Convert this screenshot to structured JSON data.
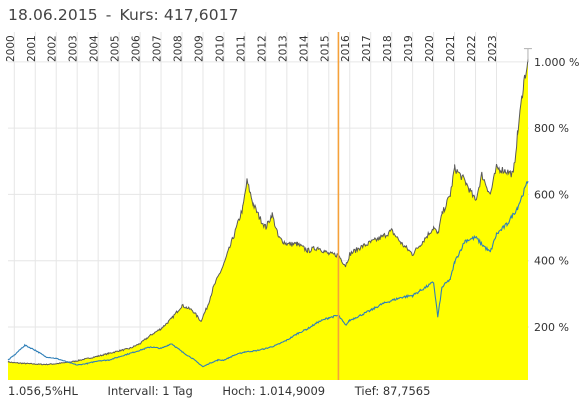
{
  "header": {
    "date": "18.06.2015",
    "separator": "-",
    "price_label": "Kurs: 417,6017"
  },
  "footer": {
    "performance": "1.056,5%HL",
    "interval": "Intervall: 1 Tag",
    "high": "Hoch: 1.014,9009",
    "low": "Tief: 87,7565"
  },
  "colors": {
    "area_fill": "#ffff00",
    "price_line": "#5a5a5a",
    "benchmark_line": "#2f7fb8",
    "crosshair": "#f5a13a",
    "grid": "#e6e6e6",
    "high_marker": "#b0b0b0"
  },
  "chart_data": {
    "type": "area",
    "x_tick_labels": [
      "2000",
      "2001",
      "2002",
      "2003",
      "2004",
      "2005",
      "2006",
      "2007",
      "2008",
      "2009",
      "2010",
      "2011",
      "2012",
      "2013",
      "2014",
      "2015",
      "2016",
      "2017",
      "2018",
      "2019",
      "2020",
      "2021",
      "2022",
      "2023"
    ],
    "y_tick_labels": [
      "200 %",
      "400 %",
      "600 %",
      "800 %",
      "1.000 %"
    ],
    "y_ticks": [
      200,
      400,
      600,
      800,
      1000
    ],
    "ylim": [
      40,
      1060
    ],
    "xlim": [
      1999.7,
      2024.55
    ],
    "marker_x": 2015.46,
    "series": [
      {
        "role": "price",
        "style": "area",
        "x": [
          1999.7,
          2000.0,
          2000.5,
          2001.0,
          2001.5,
          2002.0,
          2002.5,
          2003.0,
          2003.5,
          2004.0,
          2004.5,
          2005.0,
          2005.5,
          2006.0,
          2006.5,
          2007.0,
          2007.5,
          2008.0,
          2008.5,
          2008.9,
          2009.2,
          2009.5,
          2010.0,
          2010.5,
          2010.9,
          2011.1,
          2011.4,
          2011.7,
          2012.0,
          2012.3,
          2012.6,
          2013.0,
          2013.5,
          2014.0,
          2014.5,
          2015.0,
          2015.46,
          2015.8,
          2016.0,
          2016.5,
          2017.0,
          2017.5,
          2018.0,
          2018.5,
          2019.0,
          2019.5,
          2020.0,
          2020.2,
          2020.4,
          2020.8,
          2021.0,
          2021.5,
          2022.0,
          2022.3,
          2022.7,
          2023.0,
          2023.5,
          2023.8,
          2024.0,
          2024.3,
          2024.5
        ],
        "y": [
          95,
          92,
          90,
          88,
          87,
          89,
          93,
          98,
          105,
          112,
          120,
          128,
          135,
          150,
          175,
          195,
          225,
          265,
          250,
          218,
          260,
          320,
          390,
          480,
          560,
          640,
          570,
          530,
          500,
          540,
          470,
          450,
          450,
          430,
          440,
          420,
          417,
          385,
          420,
          440,
          455,
          470,
          490,
          450,
          420,
          460,
          500,
          480,
          540,
          600,
          680,
          640,
          580,
          660,
          600,
          680,
          670,
          660,
          780,
          940,
          1000
        ]
      },
      {
        "role": "benchmark",
        "style": "line",
        "x": [
          1999.7,
          2000.0,
          2000.5,
          2001.0,
          2001.5,
          2002.0,
          2002.5,
          2003.0,
          2003.5,
          2004.0,
          2004.5,
          2005.0,
          2005.5,
          2006.0,
          2006.5,
          2007.0,
          2007.5,
          2008.0,
          2008.5,
          2009.0,
          2009.3,
          2009.7,
          2010.0,
          2010.5,
          2011.0,
          2011.5,
          2012.0,
          2012.5,
          2013.0,
          2013.5,
          2014.0,
          2014.5,
          2015.0,
          2015.46,
          2015.8,
          2016.0,
          2016.5,
          2017.0,
          2017.5,
          2018.0,
          2018.5,
          2019.0,
          2019.5,
          2020.0,
          2020.2,
          2020.4,
          2020.8,
          2021.0,
          2021.5,
          2022.0,
          2022.3,
          2022.7,
          2023.0,
          2023.5,
          2024.0,
          2024.5
        ],
        "y": [
          100,
          115,
          145,
          130,
          110,
          105,
          95,
          85,
          90,
          98,
          100,
          110,
          120,
          130,
          140,
          135,
          150,
          125,
          105,
          80,
          90,
          100,
          100,
          115,
          125,
          128,
          135,
          145,
          160,
          180,
          195,
          215,
          228,
          235,
          205,
          220,
          235,
          250,
          268,
          280,
          290,
          295,
          315,
          335,
          230,
          320,
          345,
          395,
          460,
          470,
          450,
          425,
          480,
          510,
          560,
          640
        ]
      }
    ]
  }
}
